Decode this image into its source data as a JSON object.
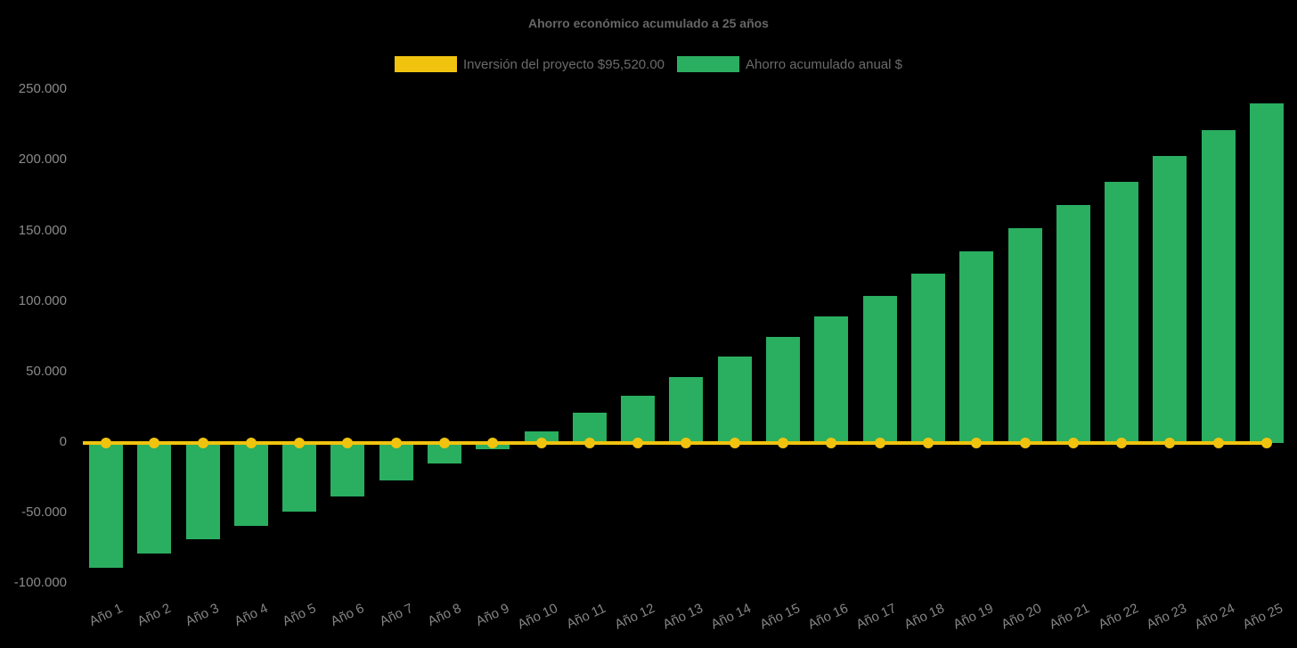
{
  "page": {
    "background": "#000000"
  },
  "chart_data": {
    "type": "bar",
    "title": "Ahorro económico acumulado a 25 años",
    "categories": [
      "Año 1",
      "Año 2",
      "Año 3",
      "Año 4",
      "Año 5",
      "Año 6",
      "Año 7",
      "Año 8",
      "Año 9",
      "Año 10",
      "Año 11",
      "Año 12",
      "Año 13",
      "Año 14",
      "Año 15",
      "Año 16",
      "Año 17",
      "Año 18",
      "Año 19",
      "Año 20",
      "Año 21",
      "Año 22",
      "Año 23",
      "Año 24",
      "Año 25"
    ],
    "series": [
      {
        "name": "Inversión del proyecto $95,520.00",
        "type": "line",
        "color": "#f0c30f",
        "values": [
          0,
          0,
          0,
          0,
          0,
          0,
          0,
          0,
          0,
          0,
          0,
          0,
          0,
          0,
          0,
          0,
          0,
          0,
          0,
          0,
          0,
          0,
          0,
          0,
          0
        ]
      },
      {
        "name": "Ahorro acumulado anual $",
        "type": "bar",
        "color": "#2aae60",
        "values": [
          -88500,
          -78500,
          -68500,
          -58600,
          -48600,
          -38000,
          -26400,
          -14800,
          -4400,
          8300,
          21300,
          33700,
          46800,
          61000,
          75200,
          89700,
          104300,
          120000,
          135800,
          152200,
          168600,
          185200,
          203300,
          221700,
          240500
        ]
      }
    ],
    "xlabel": "",
    "ylabel": "",
    "ylim": [
      -100000,
      250000
    ],
    "yticks": [
      {
        "value": 250000,
        "label": "250.000"
      },
      {
        "value": 200000,
        "label": "200.000"
      },
      {
        "value": 150000,
        "label": "150.000"
      },
      {
        "value": 100000,
        "label": "100.000"
      },
      {
        "value": 50000,
        "label": "50.000"
      },
      {
        "value": 0,
        "label": "0"
      },
      {
        "value": -50000,
        "label": "-50.000"
      },
      {
        "value": -100000,
        "label": "-100.000"
      }
    ],
    "grid": false,
    "legend_position": "top",
    "background": "#000000",
    "text_color": "#8a8a8a",
    "investment_amount_text": "$95,520.00"
  }
}
